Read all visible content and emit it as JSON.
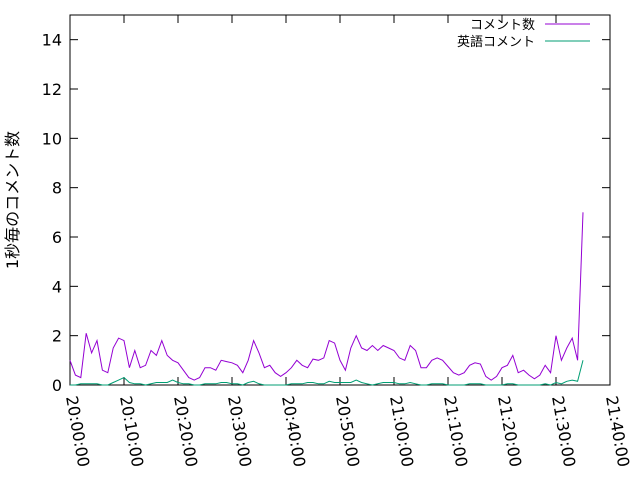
{
  "chart_data": {
    "type": "line",
    "title": "",
    "xlabel": "",
    "ylabel": "1秒毎のコメント数",
    "xlim": [
      "20:00:00",
      "21:40:00"
    ],
    "ylim": [
      0,
      15
    ],
    "x_ticks": [
      "20:00:00",
      "20:10:00",
      "20:20:00",
      "20:30:00",
      "20:40:00",
      "20:50:00",
      "21:00:00",
      "21:10:00",
      "21:20:00",
      "21:30:00",
      "21:40:00"
    ],
    "y_ticks": [
      0,
      2,
      4,
      6,
      8,
      10,
      12,
      14
    ],
    "grid": false,
    "legend_position": "top-right",
    "x": [
      "20:00",
      "20:01",
      "20:02",
      "20:03",
      "20:04",
      "20:05",
      "20:06",
      "20:07",
      "20:08",
      "20:09",
      "20:10",
      "20:11",
      "20:12",
      "20:13",
      "20:14",
      "20:15",
      "20:16",
      "20:17",
      "20:18",
      "20:19",
      "20:20",
      "20:21",
      "20:22",
      "20:23",
      "20:24",
      "20:25",
      "20:26",
      "20:27",
      "20:28",
      "20:29",
      "20:30",
      "20:31",
      "20:32",
      "20:33",
      "20:34",
      "20:35",
      "20:36",
      "20:37",
      "20:38",
      "20:39",
      "20:40",
      "20:41",
      "20:42",
      "20:43",
      "20:44",
      "20:45",
      "20:46",
      "20:47",
      "20:48",
      "20:49",
      "20:50",
      "20:51",
      "20:52",
      "20:53",
      "20:54",
      "20:55",
      "20:56",
      "20:57",
      "20:58",
      "20:59",
      "21:00",
      "21:01",
      "21:02",
      "21:03",
      "21:04",
      "21:05",
      "21:06",
      "21:07",
      "21:08",
      "21:09",
      "21:10",
      "21:11",
      "21:12",
      "21:13",
      "21:14",
      "21:15",
      "21:16",
      "21:17",
      "21:18",
      "21:19",
      "21:20",
      "21:21",
      "21:22",
      "21:23",
      "21:24",
      "21:25",
      "21:26",
      "21:27",
      "21:28",
      "21:29",
      "21:30",
      "21:31",
      "21:32",
      "21:33",
      "21:34",
      "21:35"
    ],
    "series": [
      {
        "name": "コメント数",
        "color": "#9400d3",
        "values": [
          1.0,
          0.4,
          0.3,
          2.1,
          1.3,
          1.8,
          0.6,
          0.5,
          1.5,
          1.9,
          1.8,
          0.7,
          1.4,
          0.7,
          0.8,
          1.4,
          1.2,
          1.8,
          1.2,
          1.0,
          0.9,
          0.6,
          0.3,
          0.2,
          0.3,
          0.7,
          0.7,
          0.6,
          1.0,
          0.95,
          0.9,
          0.8,
          0.5,
          1.0,
          1.8,
          1.3,
          0.7,
          0.8,
          0.5,
          0.35,
          0.5,
          0.7,
          1.0,
          0.8,
          0.7,
          1.05,
          1.0,
          1.1,
          1.8,
          1.7,
          1.0,
          0.6,
          1.5,
          2.0,
          1.5,
          1.4,
          1.6,
          1.4,
          1.6,
          1.5,
          1.4,
          1.1,
          1.0,
          1.6,
          1.4,
          0.7,
          0.7,
          1.0,
          1.1,
          1.0,
          0.75,
          0.5,
          0.4,
          0.5,
          0.8,
          0.9,
          0.85,
          0.35,
          0.2,
          0.35,
          0.7,
          0.8,
          1.2,
          0.5,
          0.6,
          0.4,
          0.25,
          0.4,
          0.8,
          0.5,
          2.0,
          1.0,
          1.5,
          1.9,
          1.0,
          7.0
        ]
      },
      {
        "name": "英語コメント",
        "color": "#009e73",
        "values": [
          0,
          0,
          0.05,
          0.05,
          0.05,
          0.05,
          0,
          0,
          0.1,
          0.2,
          0.3,
          0.1,
          0.05,
          0.05,
          0,
          0.05,
          0.1,
          0.1,
          0.1,
          0.2,
          0.1,
          0.05,
          0.05,
          0,
          0,
          0.05,
          0.05,
          0.05,
          0.1,
          0.1,
          0.05,
          0.05,
          0,
          0.1,
          0.15,
          0.05,
          0,
          0,
          0,
          0,
          0,
          0.05,
          0.05,
          0.05,
          0.1,
          0.1,
          0.05,
          0.05,
          0.15,
          0.1,
          0.1,
          0.1,
          0.1,
          0.2,
          0.1,
          0.05,
          0,
          0.05,
          0.1,
          0.1,
          0.1,
          0.05,
          0.05,
          0.1,
          0.05,
          0,
          0,
          0.05,
          0.05,
          0.05,
          0,
          0,
          0,
          0,
          0.05,
          0.05,
          0.05,
          0,
          0,
          0,
          0,
          0.05,
          0.05,
          0,
          0,
          0,
          0,
          0,
          0.05,
          0,
          0.1,
          0.05,
          0.15,
          0.2,
          0.15,
          1.0
        ]
      }
    ]
  }
}
